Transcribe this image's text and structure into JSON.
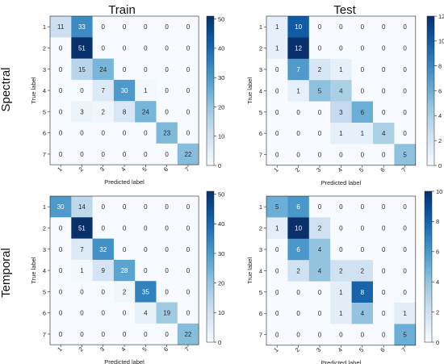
{
  "col_titles": [
    "Train",
    "Test"
  ],
  "row_titles": [
    "Spectral",
    "Temporal"
  ],
  "chart_data": [
    {
      "type": "heatmap",
      "row": "Spectral",
      "col": "Train",
      "xlabel": "Predicted label",
      "ylabel": "True label",
      "labels": [
        "1",
        "2",
        "3",
        "4",
        "5",
        "6",
        "7"
      ],
      "values": [
        [
          11,
          33,
          0,
          0,
          0,
          0,
          0
        ],
        [
          0,
          51,
          0,
          0,
          0,
          0,
          0
        ],
        [
          0,
          15,
          24,
          0,
          0,
          0,
          0
        ],
        [
          0,
          0,
          7,
          30,
          1,
          0,
          0
        ],
        [
          0,
          3,
          2,
          8,
          24,
          0,
          0
        ],
        [
          0,
          0,
          0,
          0,
          0,
          23,
          0
        ],
        [
          0,
          0,
          0,
          0,
          0,
          0,
          22
        ]
      ],
      "vmin": 0,
      "vmax": 51,
      "colorbar_ticks": [
        0,
        10,
        20,
        30,
        40,
        50
      ],
      "colormap": "Blues"
    },
    {
      "type": "heatmap",
      "row": "Spectral",
      "col": "Test",
      "xlabel": "Predicted label",
      "ylabel": "True label",
      "labels": [
        "1",
        "2",
        "3",
        "4",
        "5",
        "6",
        "7"
      ],
      "values": [
        [
          1,
          10,
          0,
          0,
          0,
          0,
          0
        ],
        [
          1,
          12,
          0,
          0,
          0,
          0,
          0
        ],
        [
          0,
          7,
          2,
          1,
          0,
          0,
          0
        ],
        [
          0,
          1,
          5,
          4,
          0,
          0,
          0
        ],
        [
          0,
          0,
          0,
          3,
          6,
          0,
          0
        ],
        [
          0,
          0,
          0,
          1,
          1,
          4,
          0
        ],
        [
          0,
          0,
          0,
          0,
          0,
          0,
          5
        ]
      ],
      "vmin": 0,
      "vmax": 12,
      "colorbar_ticks": [
        0,
        2,
        4,
        6,
        8,
        10,
        12
      ],
      "colormap": "Blues"
    },
    {
      "type": "heatmap",
      "row": "Temporal",
      "col": "Train",
      "xlabel": "Predicted label",
      "ylabel": "True label",
      "labels": [
        "1",
        "2",
        "3",
        "4",
        "5",
        "6",
        "7"
      ],
      "values": [
        [
          30,
          14,
          0,
          0,
          0,
          0,
          0
        ],
        [
          0,
          51,
          0,
          0,
          0,
          0,
          0
        ],
        [
          0,
          7,
          32,
          0,
          0,
          0,
          0
        ],
        [
          0,
          1,
          9,
          28,
          0,
          0,
          0
        ],
        [
          0,
          0,
          0,
          2,
          35,
          0,
          0
        ],
        [
          0,
          0,
          0,
          0,
          4,
          19,
          0
        ],
        [
          0,
          0,
          0,
          0,
          0,
          0,
          22
        ]
      ],
      "vmin": 0,
      "vmax": 51,
      "colorbar_ticks": [
        0,
        10,
        20,
        30,
        40,
        50
      ],
      "colormap": "Blues"
    },
    {
      "type": "heatmap",
      "row": "Temporal",
      "col": "Test",
      "xlabel": "Predicted label",
      "ylabel": "True label",
      "labels": [
        "1",
        "2",
        "3",
        "4",
        "5",
        "6",
        "7"
      ],
      "values": [
        [
          5,
          6,
          0,
          0,
          0,
          0,
          0
        ],
        [
          1,
          10,
          2,
          0,
          0,
          0,
          0
        ],
        [
          0,
          6,
          4,
          0,
          0,
          0,
          0
        ],
        [
          0,
          2,
          4,
          2,
          2,
          0,
          0
        ],
        [
          0,
          0,
          0,
          1,
          8,
          0,
          0
        ],
        [
          0,
          0,
          0,
          1,
          4,
          0,
          1
        ],
        [
          0,
          0,
          0,
          0,
          0,
          0,
          5
        ]
      ],
      "vmin": 0,
      "vmax": 10,
      "colorbar_ticks": [
        0,
        2,
        4,
        6,
        8,
        10
      ],
      "colormap": "Blues"
    }
  ]
}
